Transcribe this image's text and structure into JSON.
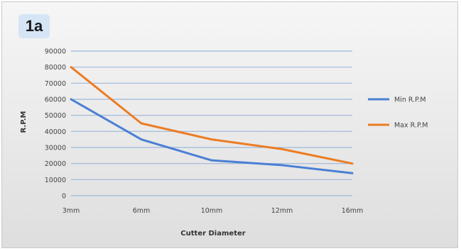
{
  "panel_label": "1a",
  "chart_data": {
    "type": "line",
    "title": "",
    "xlabel": "Cutter Diameter",
    "ylabel": "R.P.M",
    "categories": [
      "3mm",
      "6mm",
      "10mm",
      "12mm",
      "16mm"
    ],
    "ylim": [
      0,
      90000
    ],
    "yticks": [
      "0",
      "10000",
      "20000",
      "30000",
      "40000",
      "50000",
      "60000",
      "70000",
      "80000",
      "90000"
    ],
    "grid": true,
    "legend_position": "right",
    "series": [
      {
        "name": "Min R.P.M",
        "color": "#4a7fd4",
        "values": [
          60000,
          35000,
          22000,
          19000,
          14000
        ]
      },
      {
        "name": "Max R.P.M",
        "color": "#ec7c22",
        "values": [
          80000,
          45000,
          35000,
          29000,
          20000
        ]
      }
    ]
  }
}
